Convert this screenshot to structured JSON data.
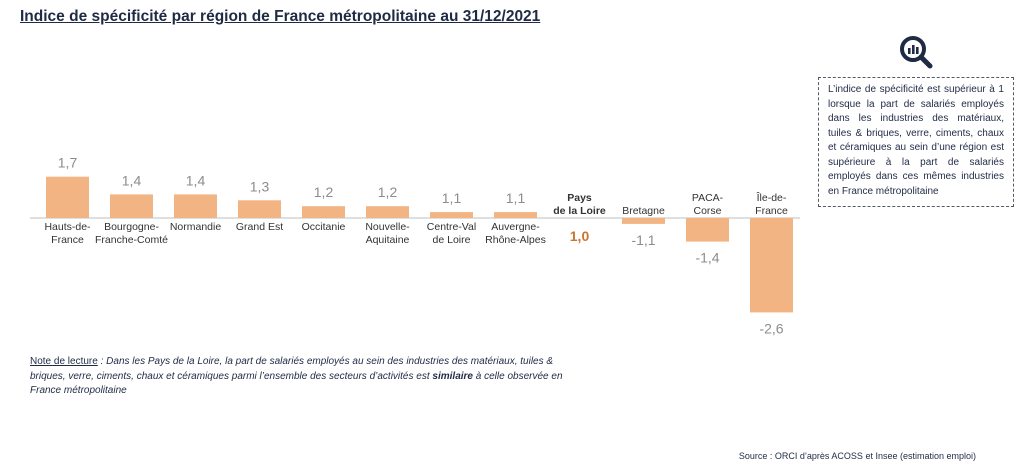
{
  "title": "Indice de spécificité par région de France métropolitaine au 31/12/2021",
  "info_box": {
    "text": "L’indice de spécificité est supérieur à 1 lorsque la part de salariés employés dans les industries des matériaux, tuiles & briques, verre, ciments, chaux et céramiques au sein d’une région est supérieure à la part de salariés employés dans ces mêmes industries en France métropolitaine",
    "icon": "magnifier-chart-icon"
  },
  "note": {
    "label": "Note de lecture",
    "text_before": " : Dans les Pays de la Loire, la part de salariés employés au sein des industries des matériaux, tuiles & briques, verre, ciments, chaux et céramiques parmi l’ensemble des secteurs d’activités est ",
    "bold_word": "similaire",
    "text_after": " à celle observée en France métropolitaine"
  },
  "source": "Source : ORCI d’après ACOSS et Insee (estimation emploi)",
  "colors": {
    "bar": "#f3b483",
    "highlight_value": "#c9772f",
    "value_label": "#8c8c8c",
    "text": "#1f2a44"
  },
  "chart_data": {
    "type": "bar",
    "baseline": 1.0,
    "categories": [
      [
        "Hauts-de-",
        "France"
      ],
      [
        "Bourgogne-",
        "Franche-Comté"
      ],
      [
        "Normandie"
      ],
      [
        "Grand Est"
      ],
      [
        "Occitanie"
      ],
      [
        "Nouvelle-",
        "Aquitaine"
      ],
      [
        "Centre-Val",
        "de Loire"
      ],
      [
        "Auvergne-",
        "Rhône-Alpes"
      ],
      [
        "Pays",
        "de la Loire"
      ],
      [
        "Bretagne"
      ],
      [
        "PACA-",
        "Corse"
      ],
      [
        "Île-de-",
        "France"
      ]
    ],
    "value_labels": [
      "1,7",
      "1,4",
      "1,4",
      "1,3",
      "1,2",
      "1,2",
      "1,1",
      "1,1",
      "1,0",
      "-1,1",
      "-1,4",
      "-2,6"
    ],
    "bar_values": [
      1.7,
      1.4,
      1.4,
      1.3,
      1.2,
      1.2,
      1.1,
      1.1,
      1.0,
      -1.1,
      -1.4,
      -2.6
    ],
    "highlight_index": 8,
    "xlabel": "",
    "ylabel": ""
  }
}
